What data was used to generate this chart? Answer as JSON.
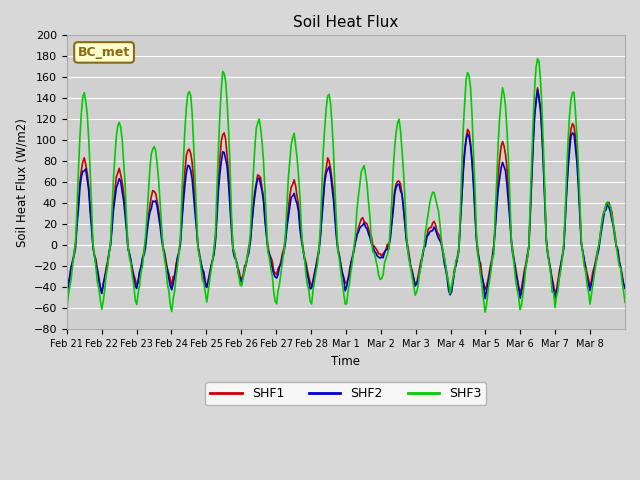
{
  "title": "Soil Heat Flux",
  "ylabel": "Soil Heat Flux (W/m2)",
  "xlabel": "Time",
  "ylim": [
    -80,
    200
  ],
  "annotation_text": "BC_met",
  "annotation_bg": "#ffffcc",
  "annotation_border": "#8b6914",
  "legend_colors": [
    "#cc0000",
    "#0000cc",
    "#00cc00"
  ],
  "legend_labels": [
    "SHF1",
    "SHF2",
    "SHF3"
  ],
  "xtick_labels": [
    "Feb 21",
    "Feb 22",
    "Feb 23",
    "Feb 24",
    "Feb 25",
    "Feb 26",
    "Feb 27",
    "Feb 28",
    "Mar 1",
    "Mar 2",
    "Mar 3",
    "Mar 4",
    "Mar 5",
    "Mar 6",
    "Mar 7",
    "Mar 8"
  ],
  "line_width": 1.2,
  "n_days": 16,
  "shf1_peaks": [
    83,
    73,
    52,
    93,
    107,
    68,
    60,
    80,
    25,
    63,
    20,
    110,
    98,
    147,
    118,
    40
  ],
  "shf2_peaks": [
    75,
    62,
    45,
    78,
    90,
    65,
    50,
    75,
    22,
    60,
    18,
    108,
    80,
    147,
    110,
    38
  ],
  "shf3_peaks": [
    145,
    118,
    95,
    148,
    165,
    120,
    105,
    145,
    75,
    118,
    50,
    165,
    148,
    178,
    145,
    40
  ],
  "shf1_nights": [
    -45,
    -40,
    -40,
    -42,
    -35,
    -30,
    -42,
    -40,
    -10,
    -40,
    -45,
    -45,
    -48,
    -48,
    -40,
    -40
  ],
  "shf2_nights": [
    -45,
    -40,
    -42,
    -40,
    -35,
    -32,
    -44,
    -42,
    -12,
    -42,
    -48,
    -48,
    -50,
    -50,
    -42,
    -42
  ],
  "shf3_nights": [
    -62,
    -58,
    -65,
    -55,
    -42,
    -60,
    -58,
    -62,
    -35,
    -52,
    -45,
    -65,
    -65,
    -60,
    -55,
    -50
  ]
}
